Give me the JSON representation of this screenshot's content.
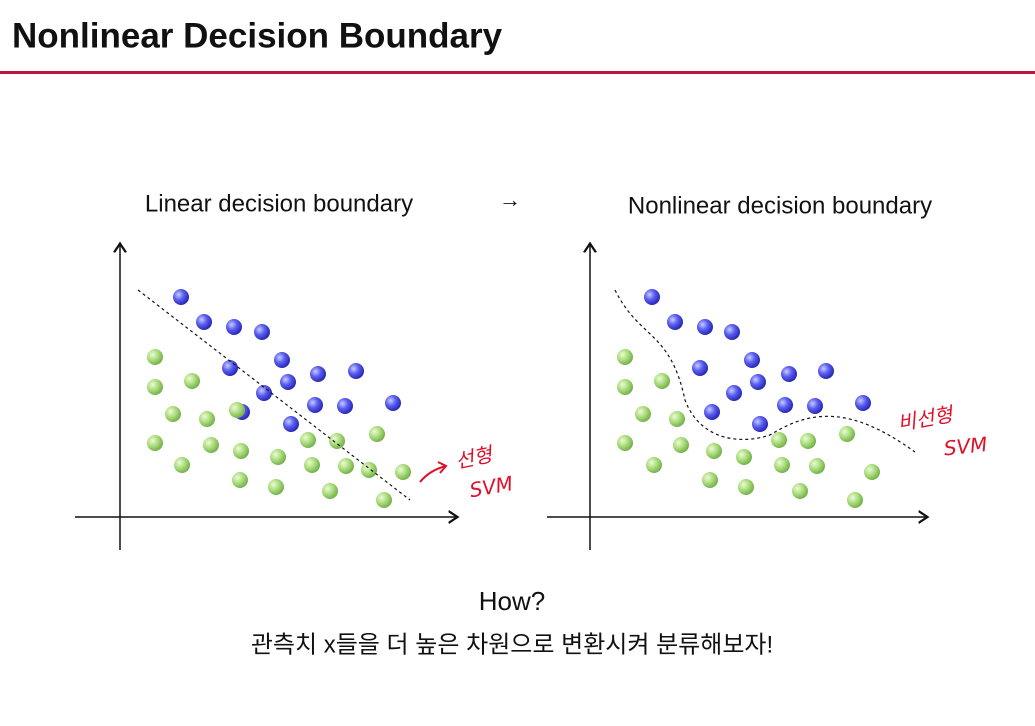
{
  "header": {
    "title": "Nonlinear Decision Boundary"
  },
  "left_panel": {
    "title": "Linear decision boundary",
    "annotation": {
      "line1": "선형",
      "line2": "SVM"
    }
  },
  "arrow": "→",
  "right_panel": {
    "title": "Nonlinear decision boundary",
    "annotation": {
      "line1": "비선형",
      "line2": "SVM"
    }
  },
  "footer": {
    "question": "How?",
    "text": "관측치 x들을 더 높은 차원으로 변환시켜 분류해보자!"
  }
}
